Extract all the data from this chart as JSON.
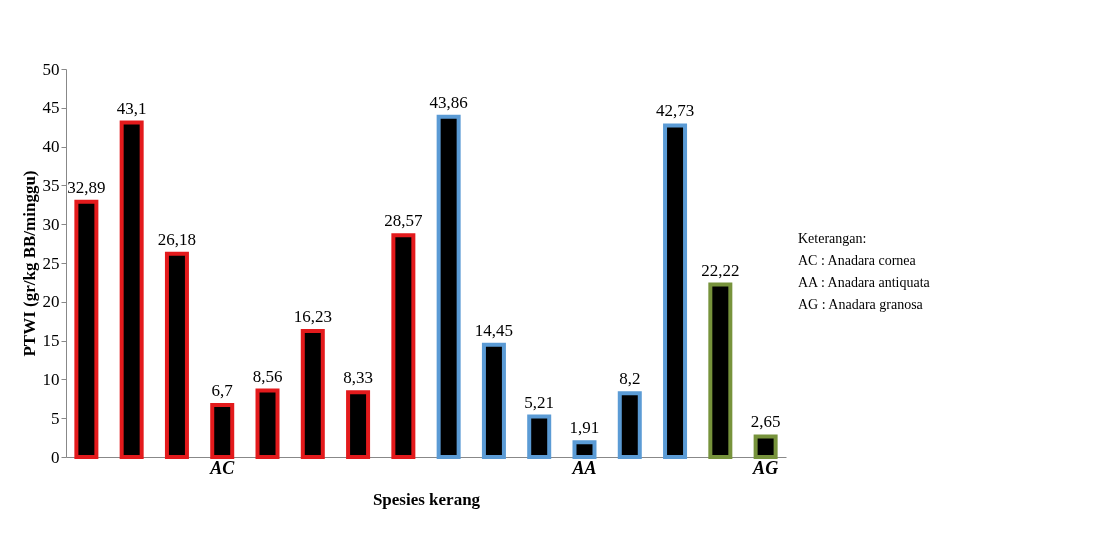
{
  "chart_data": {
    "type": "bar",
    "xlabel": "Spesies kerang",
    "ylabel": "PTWI (gr/kg BB/minggu)",
    "categories": [
      null,
      null,
      null,
      "AC",
      null,
      null,
      null,
      null,
      null,
      null,
      null,
      "AA",
      null,
      null,
      null,
      "AG"
    ],
    "values": [
      32.89,
      43.1,
      26.18,
      6.7,
      8.56,
      16.23,
      8.33,
      28.57,
      43.86,
      14.45,
      5.21,
      1.91,
      8.2,
      42.73,
      22.22,
      2.65
    ],
    "value_labels": [
      "32,89",
      "43,1",
      "26,18",
      "6,7",
      "8,56",
      "16,23",
      "8,33",
      "28,57",
      "43,86",
      "14,45",
      "5,21",
      "1,91",
      "8,2",
      "42,73",
      "22,22",
      "2,65"
    ],
    "colors": [
      "#e31a1c",
      "#e31a1c",
      "#e31a1c",
      "#e31a1c",
      "#e31a1c",
      "#e31a1c",
      "#e31a1c",
      "#e31a1c",
      "#5b9bd5",
      "#5b9bd5",
      "#5b9bd5",
      "#5b9bd5",
      "#5b9bd5",
      "#5b9bd5",
      "#77933c",
      "#77933c"
    ],
    "ylim": [
      0,
      50
    ],
    "yticks": [
      0,
      5,
      10,
      15,
      20,
      25,
      30,
      35,
      40,
      45,
      50
    ],
    "grid": false,
    "annotations": [
      "Keterangan:",
      "AC  : Anadara cornea",
      "AA  : Anadara antiquata",
      "AG  : Anadara granosa"
    ]
  }
}
